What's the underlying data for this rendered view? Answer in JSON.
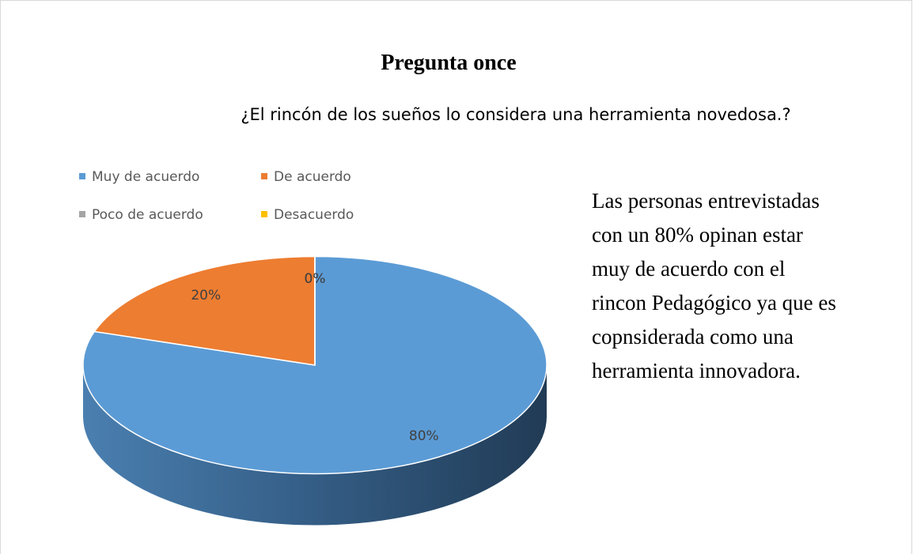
{
  "chart_data": {
    "type": "pie",
    "title": "Pregunta once",
    "subtitle": "¿El rincón de los sueños lo considera una herramienta novedosa.?",
    "categories": [
      "Muy de acuerdo",
      "De acuerdo",
      "Poco de acuerdo",
      "Desacuerdo"
    ],
    "values": [
      80,
      20,
      0,
      0
    ],
    "value_labels": [
      "80%",
      "20%",
      "0%",
      "0%"
    ],
    "colors": [
      "#5b9bd5",
      "#ed7d31",
      "#a5a5a5",
      "#ffc000"
    ],
    "annotation": [
      "Las personas entrevistadas",
      "con un 80% opinan estar",
      "muy de acuerdo con el",
      "rincon Pedagógico ya que es",
      "copnsiderada como una",
      "herramienta innovadora."
    ]
  }
}
